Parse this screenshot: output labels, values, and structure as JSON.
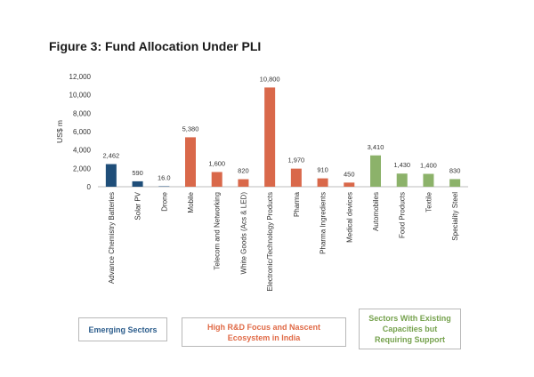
{
  "figure_title": "Figure 3: Fund Allocation Under PLI",
  "chart_data": {
    "type": "bar",
    "title": "Figure 3: Fund Allocation Under PLI",
    "xlabel": "",
    "ylabel": "US$ m",
    "ylim": [
      0,
      12000
    ],
    "yticks": [
      0,
      2000,
      4000,
      6000,
      8000,
      10000,
      12000
    ],
    "ytick_labels": [
      "0",
      "2,000",
      "4,000",
      "6,000",
      "8,000",
      "10,000",
      "12,000"
    ],
    "grid": false,
    "categories": [
      "Advance Chemistry Batteries",
      "Solar PV",
      "Drone",
      "Mobile",
      "Telecom and Networking",
      "White Goods (Acs & LED)",
      "Electronic/Technology Products",
      "Pharma",
      "Pharma Ingredients",
      "Medical devices",
      "Automobiles",
      "Food Products",
      "Textile",
      "Speciality Steel"
    ],
    "values": [
      2462,
      590,
      16,
      5380,
      1600,
      820,
      10800,
      1970,
      910,
      450,
      3410,
      1430,
      1400,
      830
    ],
    "value_labels": [
      "2,462",
      "590",
      "16.0",
      "5,380",
      "1,600",
      "820",
      "10,800",
      "1,970",
      "910",
      "450",
      "3,410",
      "1,430",
      "1,400",
      "830"
    ],
    "bar_colors": [
      "#1f4e79",
      "#1f4e79",
      "#1f4e79",
      "#d9684a",
      "#d9684a",
      "#d9684a",
      "#d9684a",
      "#d9684a",
      "#d9684a",
      "#d9684a",
      "#8cb26a",
      "#8cb26a",
      "#8cb26a",
      "#8cb26a"
    ]
  },
  "groups": {
    "emerging": "Emerging Sectors",
    "rd": "High R&D Focus and Nascent Ecosystem in India",
    "existing": "Sectors With Existing Capacities but Requiring Support"
  },
  "colors": {
    "emerging": "#1f4e79",
    "rd": "#d9684a",
    "existing": "#8cb26a"
  }
}
